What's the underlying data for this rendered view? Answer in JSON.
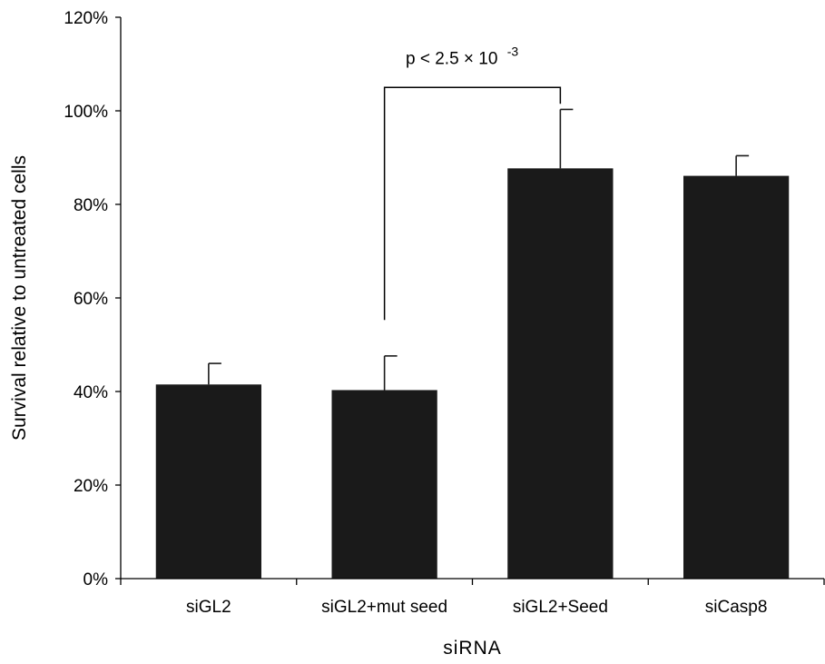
{
  "chart_data": {
    "type": "bar",
    "title": "",
    "xlabel": "siRNA",
    "ylabel": "Survival relative to untreated cells",
    "categories": [
      "siGL2",
      "siGL2+mut seed",
      "siGL2+Seed",
      "siCasp8"
    ],
    "values": [
      41.5,
      40.3,
      87.7,
      86.1
    ],
    "error_upper": [
      4.5,
      7.3,
      12.6,
      4.3
    ],
    "ylim": [
      0,
      120
    ],
    "yticks": [
      0,
      20,
      40,
      60,
      80,
      100,
      120
    ],
    "ytick_labels": [
      "0%",
      "20%",
      "40%",
      "60%",
      "80%",
      "100%",
      "120%"
    ],
    "bar_color": "#1a1a1a",
    "grid": false,
    "annotation": {
      "text": "p < 2.5 × 10",
      "superscript": "-3",
      "from_category": "siGL2+mut seed",
      "to_category": "siGL2+Seed"
    }
  }
}
